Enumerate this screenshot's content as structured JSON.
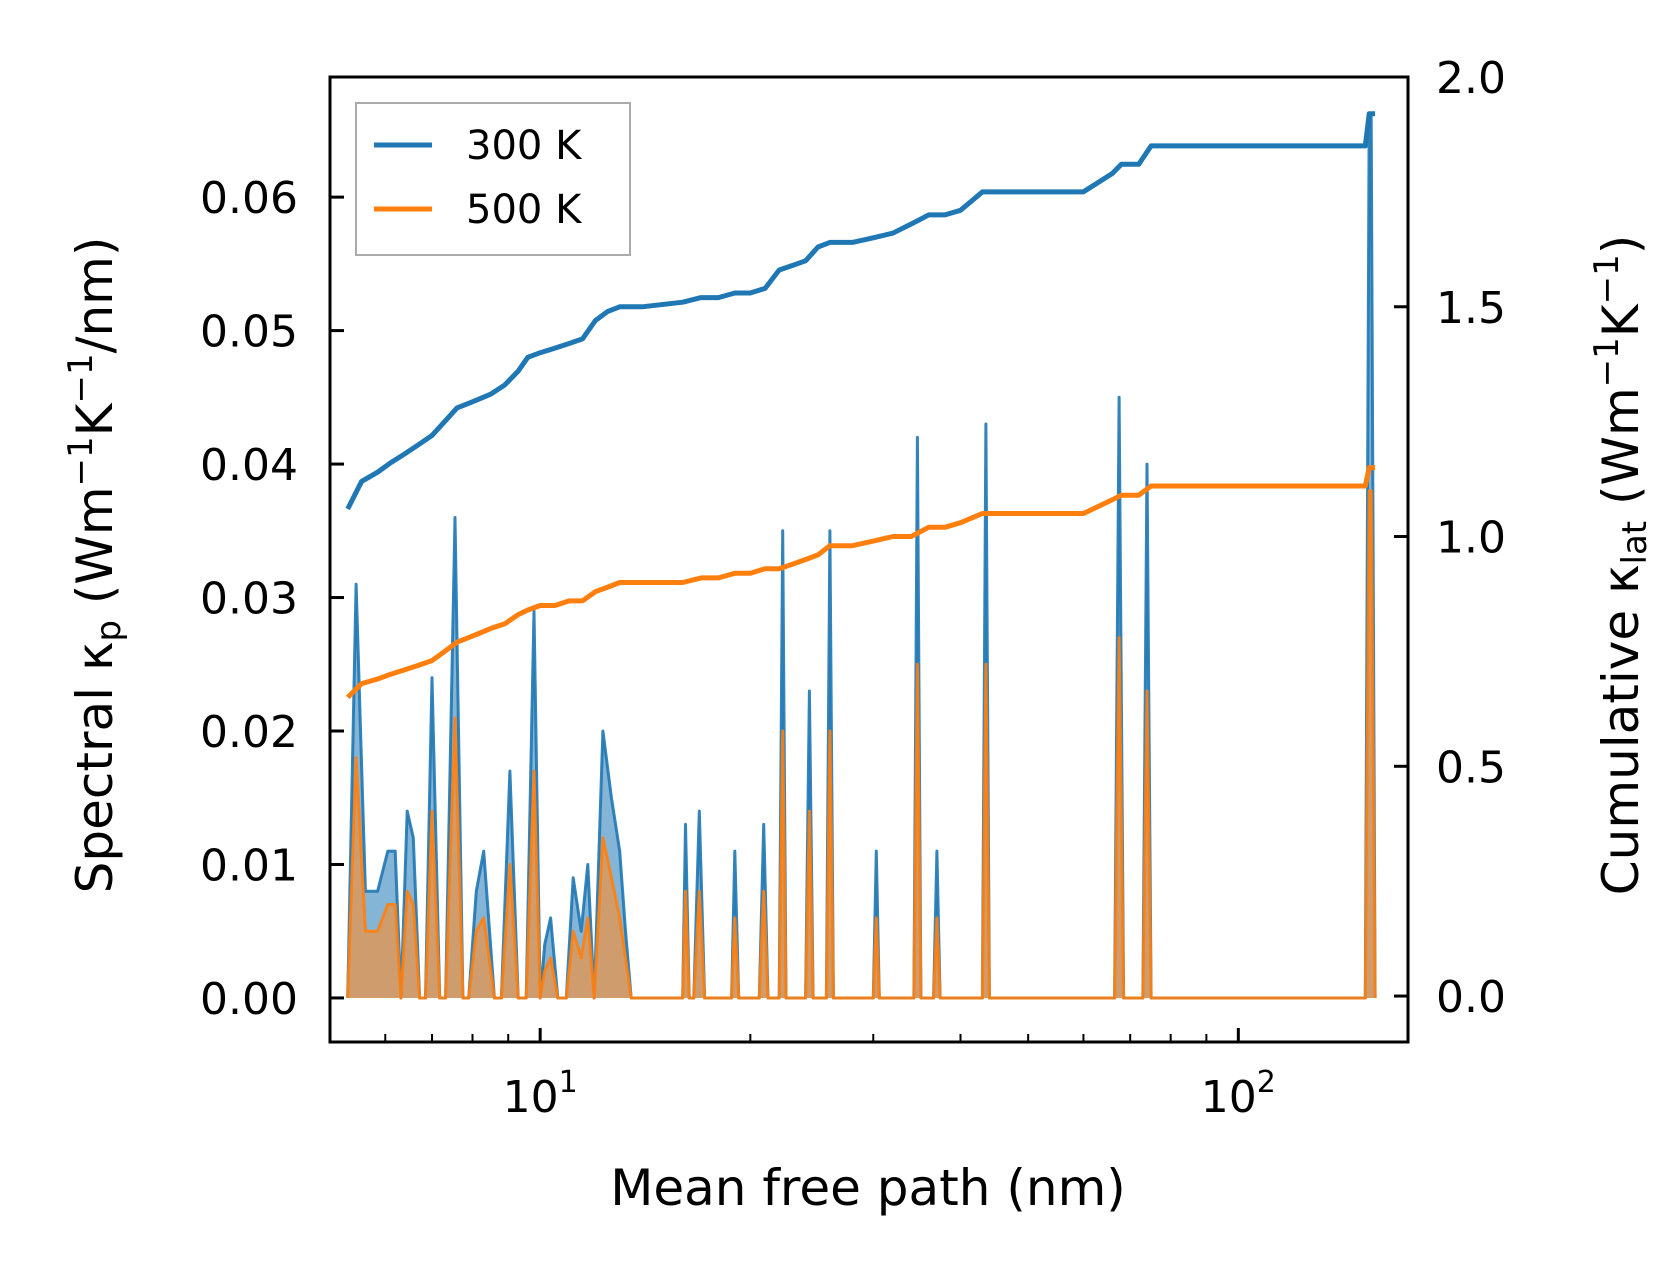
{
  "chart_data": {
    "type": "line",
    "title": "",
    "x_scale": "log",
    "xlabel": "Mean free path (nm)",
    "xlim": [
      5.0,
      175.0
    ],
    "x_ticks": [
      {
        "value": 10,
        "base": "10",
        "exp": "1"
      },
      {
        "value": 100,
        "base": "10",
        "exp": "2"
      }
    ],
    "left_axis": {
      "label_parts": {
        "pre": "Spectral κ",
        "sub": "p",
        "mid": " (Wm",
        "sup1": "−1",
        "mid2": "K",
        "sup2": "−1",
        "post": "/nm)"
      },
      "ylim": [
        -0.0033,
        0.069
      ],
      "ticks": [
        "0.00",
        "0.01",
        "0.02",
        "0.03",
        "0.04",
        "0.05",
        "0.06"
      ]
    },
    "right_axis": {
      "label_parts": {
        "pre": "Cumulative κ",
        "sub": "lat",
        "mid": " (Wm",
        "sup1": "−1",
        "mid2": "K",
        "sup2": "−1",
        "post": ")"
      },
      "ylim": [
        -0.1,
        2.0
      ],
      "ticks": [
        "0.0",
        "0.5",
        "1.0",
        "1.5",
        "2.0"
      ]
    },
    "legend": {
      "position": "upper-left",
      "entries": [
        "300 K",
        "500 K"
      ]
    },
    "colors": {
      "series_300": "#1f77b4",
      "series_500": "#ff7f0e",
      "fill_300": "#1f77b4",
      "fill_500": "#e8954a"
    },
    "spectral_series": [
      {
        "name": "300 K",
        "x": [
          5.3,
          5.45,
          5.62,
          5.85,
          6.05,
          6.2,
          6.32,
          6.45,
          6.58,
          6.72,
          6.85,
          7.0,
          7.18,
          7.32,
          7.55,
          7.75,
          7.9,
          8.1,
          8.3,
          8.6,
          8.8,
          9.05,
          9.3,
          9.55,
          9.8,
          10.0,
          10.15,
          10.35,
          10.6,
          10.9,
          11.15,
          11.45,
          11.7,
          11.95,
          12.3,
          12.65,
          13.0,
          13.25,
          13.5,
          16.0,
          16.15,
          16.35,
          16.6,
          16.9,
          17.2,
          18.8,
          19.0,
          19.25,
          20.6,
          20.9,
          21.2,
          22.0,
          22.25,
          22.5,
          24.0,
          24.3,
          24.6,
          25.7,
          26.0,
          26.3,
          30.0,
          30.3,
          30.6,
          34.3,
          34.7,
          35.1,
          36.6,
          37.0,
          37.4,
          43.0,
          43.5,
          44.0,
          66.5,
          67.5,
          68.5,
          73.0,
          74.0,
          75.0,
          152.0,
          154.0,
          155.0,
          157.0
        ],
        "y": [
          0,
          0.031,
          0.008,
          0.008,
          0.011,
          0.011,
          0.0,
          0.014,
          0.012,
          0.0,
          0.0,
          0.024,
          0.0,
          0.0,
          0.036,
          0.0,
          0.0,
          0.008,
          0.011,
          0.0,
          0.0,
          0.017,
          0.0,
          0.0,
          0.029,
          0.0,
          0.004,
          0.006,
          0.0,
          0.0,
          0.009,
          0.005,
          0.01,
          0.0,
          0.02,
          0.015,
          0.011,
          0.005,
          0.0,
          0.0,
          0.013,
          0.0,
          0.0,
          0.014,
          0.0,
          0.0,
          0.011,
          0.0,
          0.0,
          0.013,
          0.0,
          0.0,
          0.035,
          0.0,
          0.0,
          0.023,
          0.0,
          0.0,
          0.035,
          0.0,
          0.0,
          0.011,
          0.0,
          0.0,
          0.042,
          0.0,
          0.0,
          0.011,
          0.0,
          0.0,
          0.043,
          0.0,
          0.0,
          0.045,
          0.0,
          0.0,
          0.04,
          0.0,
          0.0,
          0.066,
          0.066,
          0.0
        ]
      },
      {
        "name": "500 K",
        "x": [
          5.3,
          5.45,
          5.62,
          5.85,
          6.05,
          6.2,
          6.32,
          6.45,
          6.58,
          6.72,
          6.85,
          7.0,
          7.18,
          7.32,
          7.55,
          7.75,
          7.9,
          8.1,
          8.3,
          8.6,
          8.8,
          9.05,
          9.3,
          9.55,
          9.8,
          10.0,
          10.15,
          10.35,
          10.6,
          10.9,
          11.15,
          11.45,
          11.7,
          11.95,
          12.3,
          12.65,
          13.0,
          13.25,
          13.5,
          16.0,
          16.15,
          16.35,
          16.6,
          16.9,
          17.2,
          18.8,
          19.0,
          19.25,
          20.6,
          20.9,
          21.2,
          22.0,
          22.25,
          22.5,
          24.0,
          24.3,
          24.6,
          25.7,
          26.0,
          26.3,
          30.0,
          30.3,
          30.6,
          34.3,
          34.7,
          35.1,
          36.6,
          37.0,
          37.4,
          43.0,
          43.5,
          44.0,
          66.5,
          67.5,
          68.5,
          73.0,
          74.0,
          75.0,
          152.0,
          154.0,
          155.0,
          157.0
        ],
        "y": [
          0,
          0.018,
          0.005,
          0.005,
          0.007,
          0.007,
          0.0,
          0.008,
          0.007,
          0.0,
          0.0,
          0.014,
          0.0,
          0.0,
          0.021,
          0.0,
          0.0,
          0.005,
          0.006,
          0.0,
          0.0,
          0.01,
          0.0,
          0.0,
          0.017,
          0.0,
          0.002,
          0.003,
          0.0,
          0.0,
          0.005,
          0.003,
          0.006,
          0.0,
          0.012,
          0.009,
          0.006,
          0.003,
          0.0,
          0.0,
          0.008,
          0.0,
          0.0,
          0.008,
          0.0,
          0.0,
          0.006,
          0.0,
          0.0,
          0.008,
          0.0,
          0.0,
          0.02,
          0.0,
          0.0,
          0.014,
          0.0,
          0.0,
          0.02,
          0.0,
          0.0,
          0.006,
          0.0,
          0.0,
          0.025,
          0.0,
          0.0,
          0.006,
          0.0,
          0.0,
          0.025,
          0.0,
          0.0,
          0.027,
          0.0,
          0.0,
          0.023,
          0.0,
          0.0,
          0.038,
          0.038,
          0.0
        ]
      }
    ],
    "cumulative_series": [
      {
        "name": "300 K",
        "x": [
          5.3,
          5.55,
          5.85,
          6.1,
          6.4,
          6.7,
          7.0,
          7.3,
          7.6,
          7.9,
          8.2,
          8.5,
          8.9,
          9.3,
          9.6,
          10.0,
          10.5,
          11.0,
          11.5,
          12.0,
          12.5,
          13.0,
          14.0,
          16.0,
          17.0,
          18.0,
          19.0,
          20.0,
          21.0,
          22.0,
          23.0,
          24.0,
          25.0,
          26.0,
          28.0,
          30.0,
          32.0,
          34.0,
          35.0,
          36.0,
          38.0,
          40.0,
          43.0,
          45.0,
          50.0,
          60.0,
          66.0,
          68.0,
          72.0,
          75.0,
          100.0,
          130.0,
          152.0,
          154.0,
          157.0
        ],
        "y": [
          1.06,
          1.12,
          1.14,
          1.16,
          1.18,
          1.2,
          1.22,
          1.25,
          1.28,
          1.29,
          1.3,
          1.31,
          1.33,
          1.36,
          1.39,
          1.4,
          1.41,
          1.42,
          1.43,
          1.47,
          1.49,
          1.5,
          1.5,
          1.51,
          1.52,
          1.52,
          1.53,
          1.53,
          1.54,
          1.58,
          1.59,
          1.6,
          1.63,
          1.64,
          1.64,
          1.65,
          1.66,
          1.68,
          1.69,
          1.7,
          1.7,
          1.71,
          1.75,
          1.75,
          1.75,
          1.75,
          1.79,
          1.81,
          1.81,
          1.85,
          1.85,
          1.85,
          1.85,
          1.92,
          1.92
        ]
      },
      {
        "name": "500 K",
        "x": [
          5.3,
          5.55,
          5.85,
          6.1,
          6.4,
          6.7,
          7.0,
          7.3,
          7.6,
          7.9,
          8.2,
          8.5,
          8.9,
          9.3,
          9.6,
          10.0,
          10.5,
          11.0,
          11.5,
          12.0,
          12.5,
          13.0,
          14.0,
          16.0,
          17.0,
          18.0,
          19.0,
          20.0,
          21.0,
          22.0,
          23.0,
          24.0,
          25.0,
          26.0,
          28.0,
          30.0,
          32.0,
          34.0,
          35.0,
          36.0,
          38.0,
          40.0,
          43.0,
          45.0,
          50.0,
          60.0,
          66.0,
          68.0,
          72.0,
          75.0,
          100.0,
          130.0,
          152.0,
          154.0,
          157.0
        ],
        "y": [
          0.65,
          0.68,
          0.69,
          0.7,
          0.71,
          0.72,
          0.73,
          0.75,
          0.77,
          0.78,
          0.79,
          0.8,
          0.81,
          0.83,
          0.84,
          0.85,
          0.85,
          0.86,
          0.86,
          0.88,
          0.89,
          0.9,
          0.9,
          0.9,
          0.91,
          0.91,
          0.92,
          0.92,
          0.93,
          0.93,
          0.94,
          0.95,
          0.96,
          0.98,
          0.98,
          0.99,
          1.0,
          1.0,
          1.01,
          1.02,
          1.02,
          1.03,
          1.05,
          1.05,
          1.05,
          1.05,
          1.08,
          1.09,
          1.09,
          1.11,
          1.11,
          1.11,
          1.11,
          1.15,
          1.15
        ]
      }
    ]
  }
}
